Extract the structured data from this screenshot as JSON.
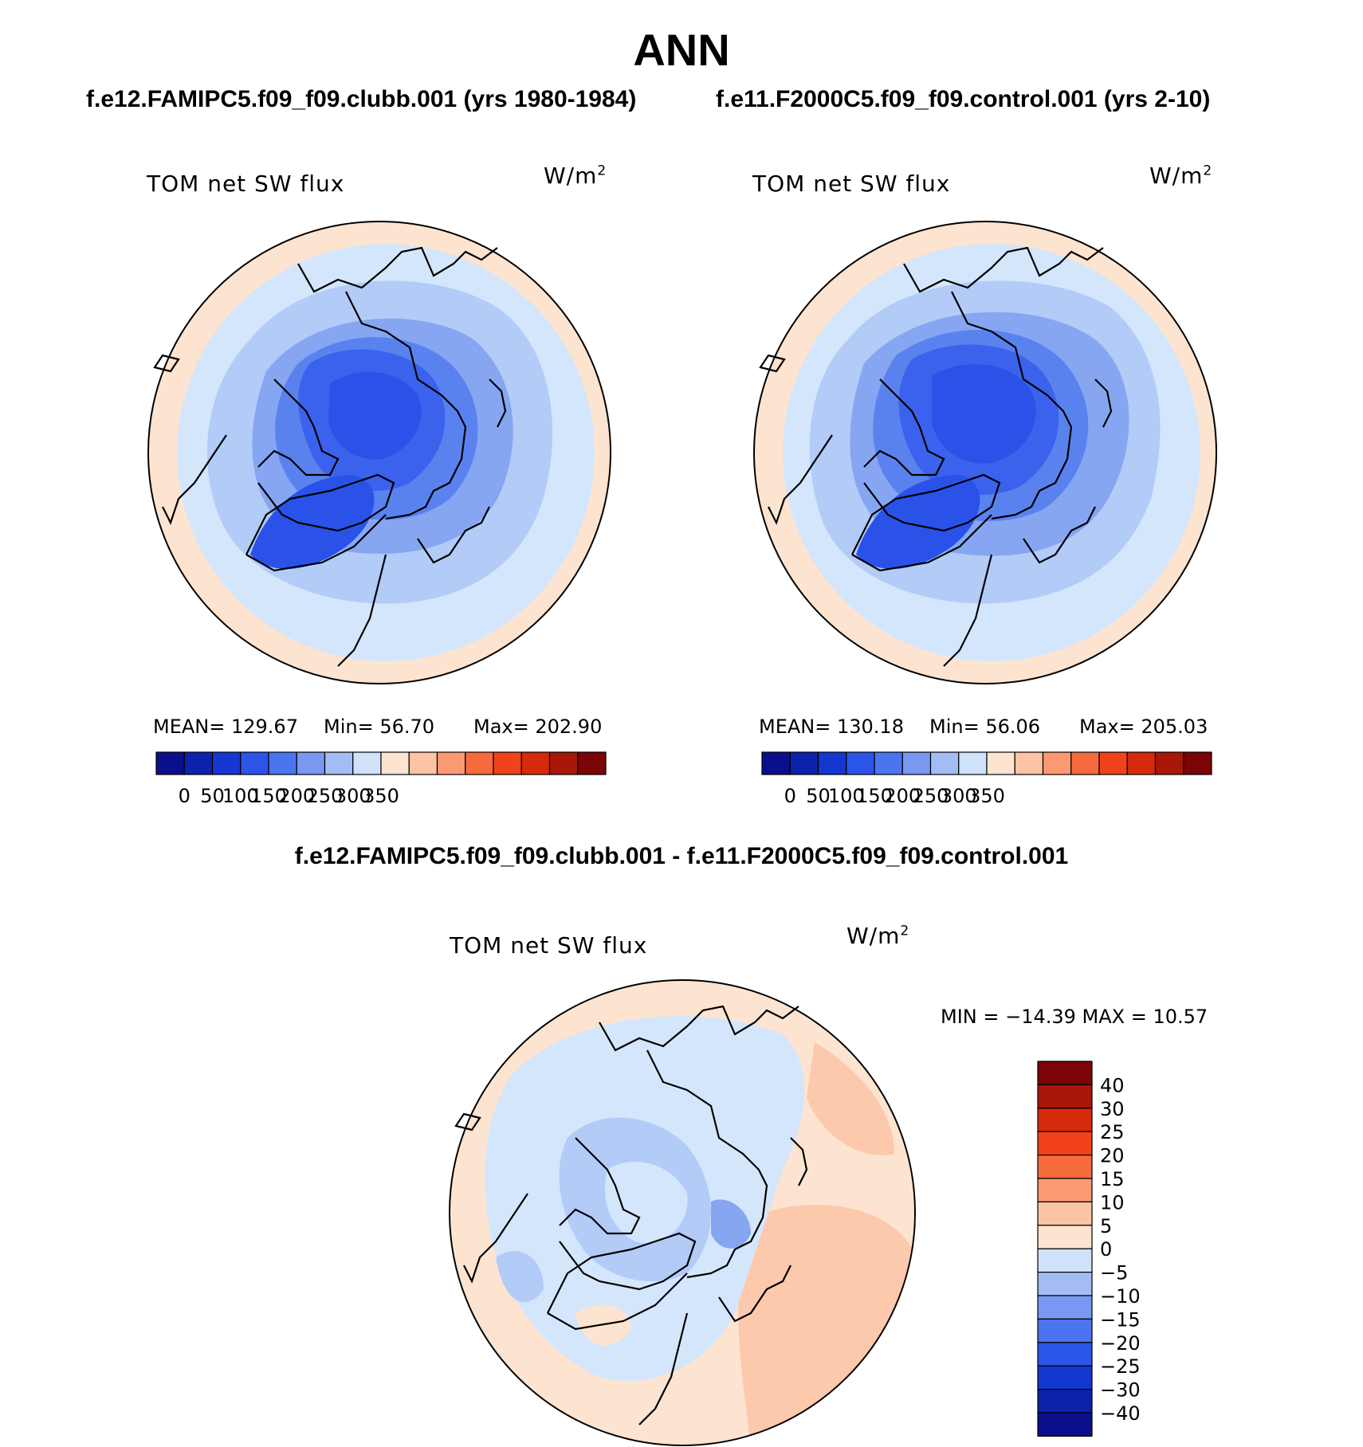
{
  "title": "ANN",
  "left_case_title": "f.e12.FAMIPC5.f09_f09.clubb.001 (yrs 1980-1984)",
  "right_case_title": "f.e11.F2000C5.f09_f09.control.001 (yrs 2-10)",
  "diff_title": "f.e12.FAMIPC5.f09_f09.clubb.001 - f.e11.F2000C5.f09_f09.control.001",
  "variable_label": "TOM net SW flux",
  "units_base": "W/m",
  "units_exp": "2",
  "panels": {
    "left": {
      "mean_label": "MEAN= 129.67",
      "min_label": "Min=   56.70",
      "max_label": "Max= 202.90"
    },
    "right": {
      "mean_label": "MEAN= 130.18",
      "min_label": "Min=   56.06",
      "max_label": "Max= 205.03"
    },
    "diff": {
      "minmax_label": "MIN = −14.39 MAX =   10.57"
    }
  },
  "colorbar_abs": {
    "labels": [
      "0",
      "50",
      "100",
      "150",
      "200",
      "250",
      "300",
      "350"
    ],
    "colors": [
      "#0a0f8c",
      "#0c22aa",
      "#1438cf",
      "#2a55e8",
      "#4a74f0",
      "#7898f2",
      "#a4bcf5",
      "#d0e2fa",
      "#fde4d0",
      "#fcc4a4",
      "#fb9a72",
      "#f76a3e",
      "#f2421b",
      "#d62a0c",
      "#a91708",
      "#7a0406"
    ]
  },
  "colorbar_diff": {
    "labels": [
      "40",
      "30",
      "25",
      "20",
      "15",
      "10",
      "5",
      "0",
      "−5",
      "−10",
      "−15",
      "−20",
      "−25",
      "−30",
      "−40"
    ],
    "colors": [
      "#7a0406",
      "#a91708",
      "#d62a0c",
      "#f2421b",
      "#f76a3e",
      "#fb9a72",
      "#fcc4a4",
      "#fde4d0",
      "#d0e2fa",
      "#a4bcf5",
      "#7898f2",
      "#4a74f0",
      "#2a55e8",
      "#1438cf",
      "#0c22aa",
      "#0a0f8c"
    ]
  },
  "map_colors": {
    "pale_orange": "#fde4d0",
    "light_orange": "#fcc9ad",
    "pale_blue": "#d4e6fb",
    "light_blue": "#b3cbf7",
    "mid_blue": "#86a6f2",
    "blue": "#5a82ef",
    "deep_blue": "#3a62ec",
    "core_blue": "#2a52e8",
    "coast": "#000000"
  }
}
